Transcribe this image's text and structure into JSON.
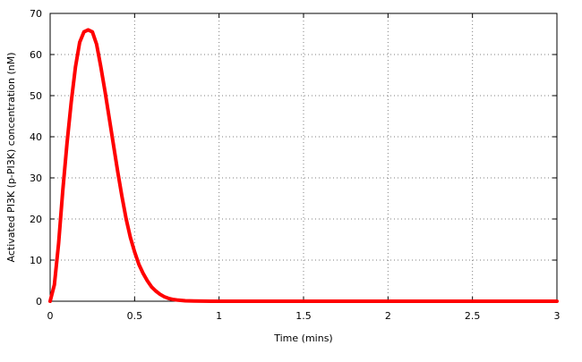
{
  "chart_data": {
    "type": "line",
    "title": "",
    "xlabel": "Time (mins)",
    "ylabel": "Activated PI3K (p-PI3K) concentration (nM)",
    "xlim": [
      0,
      3
    ],
    "ylim": [
      0,
      70
    ],
    "x_ticks": [
      0,
      0.5,
      1,
      1.5,
      2,
      2.5,
      3
    ],
    "x_tick_labels": [
      "0",
      "0.5",
      "1",
      "1.5",
      "2",
      "2.5",
      "3"
    ],
    "y_ticks": [
      0,
      10,
      20,
      30,
      40,
      50,
      60,
      70
    ],
    "y_tick_labels": [
      "0",
      "10",
      "20",
      "30",
      "40",
      "50",
      "60",
      "70"
    ],
    "grid": true,
    "legend": "none",
    "series": [
      {
        "color": "#ff0000",
        "x": [
          0,
          0.025,
          0.05,
          0.075,
          0.1,
          0.125,
          0.15,
          0.175,
          0.2,
          0.225,
          0.25,
          0.275,
          0.3,
          0.325,
          0.35,
          0.375,
          0.4,
          0.425,
          0.45,
          0.475,
          0.5,
          0.525,
          0.55,
          0.575,
          0.6,
          0.625,
          0.65,
          0.675,
          0.7,
          0.725,
          0.75,
          0.8,
          0.85,
          0.9,
          0.95,
          1,
          1.5,
          2,
          2.5,
          3
        ],
        "y": [
          0,
          4,
          14,
          27,
          38.5,
          48.5,
          57,
          63,
          65.5,
          66,
          65.5,
          62.5,
          57,
          51,
          44.5,
          38,
          31.5,
          25.5,
          20,
          15.5,
          12,
          9,
          6.8,
          5,
          3.5,
          2.5,
          1.7,
          1.1,
          0.7,
          0.45,
          0.3,
          0.12,
          0.05,
          0.02,
          0.01,
          0,
          0,
          0,
          0,
          0
        ]
      }
    ]
  }
}
